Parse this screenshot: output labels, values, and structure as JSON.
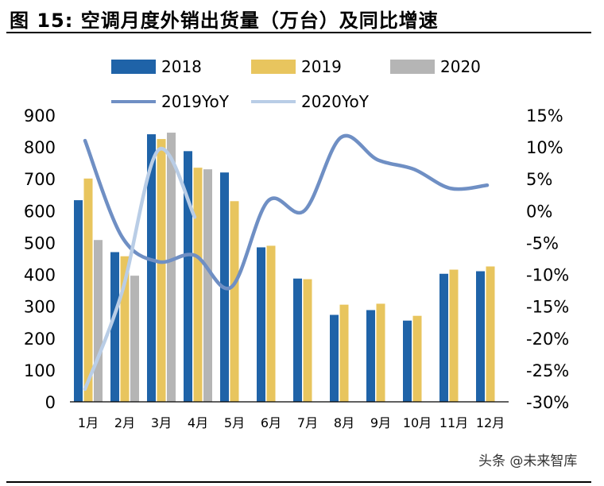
{
  "title": "图 15: 空调月度外销出货量（万台）及同比增速",
  "watermark": "头条 @未来智库",
  "colors": {
    "s2018": "#1f63a8",
    "s2019": "#e8c55e",
    "s2020": "#b5b5b5",
    "yoy2019": "#6f8fc4",
    "yoy2020": "#b9cde6"
  },
  "chart_data": {
    "type": "bar",
    "categories": [
      "1月",
      "2月",
      "3月",
      "4月",
      "5月",
      "6月",
      "7月",
      "8月",
      "9月",
      "10月",
      "11月",
      "12月"
    ],
    "ylim": [
      0,
      900
    ],
    "y_ticks": [
      "0",
      "100",
      "200",
      "300",
      "400",
      "500",
      "600",
      "700",
      "800",
      "900"
    ],
    "y2lim": [
      -30,
      15
    ],
    "y2_ticks": [
      "-30%",
      "-25%",
      "-20%",
      "-15%",
      "-10%",
      "-5%",
      "0%",
      "5%",
      "10%",
      "15%"
    ],
    "legend_position": "top",
    "grid": false,
    "series": [
      {
        "name": "2018",
        "kind": "bar",
        "values": [
          633,
          470,
          840,
          787,
          720,
          485,
          387,
          273,
          288,
          255,
          402,
          410
        ]
      },
      {
        "name": "2019",
        "kind": "bar",
        "values": [
          701,
          457,
          825,
          735,
          630,
          490,
          385,
          305,
          308,
          270,
          415,
          425
        ]
      },
      {
        "name": "2020",
        "kind": "bar",
        "values": [
          508,
          396,
          845,
          730,
          null,
          null,
          null,
          null,
          null,
          null,
          null,
          null
        ]
      },
      {
        "name": "2019YoY",
        "kind": "line",
        "axis": "right",
        "values": [
          11,
          -4,
          -8,
          -7,
          -12,
          1.5,
          0,
          11.5,
          8,
          6.5,
          3.5,
          4
        ]
      },
      {
        "name": "2020YoY",
        "kind": "line",
        "axis": "right",
        "values": [
          -28,
          -13,
          9.5,
          -1,
          null,
          null,
          null,
          null,
          null,
          null,
          null,
          null
        ]
      }
    ]
  }
}
